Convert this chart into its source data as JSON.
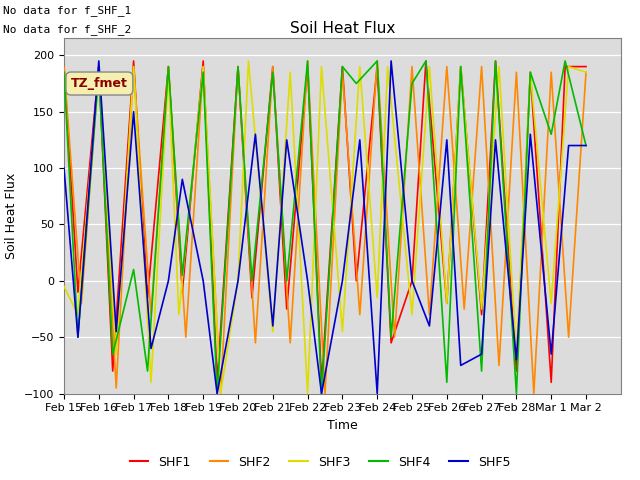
{
  "title": "Soil Heat Flux",
  "ylabel": "Soil Heat Flux",
  "xlabel": "Time",
  "text_topleft_line1": "No data for f_SHF_1",
  "text_topleft_line2": "No data for f_SHF_2",
  "annotation_box": "TZ_fmet",
  "ylim": [
    -100,
    215
  ],
  "xlim": [
    0,
    16
  ],
  "background_color": "#dcdcdc",
  "fig_color": "#ffffff",
  "series_colors": {
    "SHF1": "#ff0000",
    "SHF2": "#ff8800",
    "SHF3": "#dddd00",
    "SHF4": "#00bb00",
    "SHF5": "#0000cc"
  },
  "series_linewidth": 1.2,
  "xtick_labels": [
    "Feb 15",
    "Feb 16",
    "Feb 17",
    "Feb 18",
    "Feb 19",
    "Feb 20",
    "Feb 21",
    "Feb 22",
    "Feb 23",
    "Feb 24",
    "Feb 25",
    "Feb 26",
    "Feb 27",
    "Feb 28",
    "Mar 1",
    "Mar 2"
  ],
  "ytick_vals": [
    -100,
    -50,
    0,
    50,
    100,
    150,
    200
  ],
  "shf1_x": [
    0,
    0.4,
    1,
    1.4,
    2,
    2.4,
    3,
    3.4,
    4,
    4.4,
    5,
    5.4,
    6,
    6.4,
    7,
    7.4,
    8,
    8.4,
    9,
    9.4,
    10,
    10.4,
    11,
    11.4,
    12,
    12.4,
    13,
    13.4,
    14,
    14.4,
    15
  ],
  "shf1": [
    190,
    -10,
    190,
    -80,
    195,
    -15,
    190,
    -10,
    195,
    -90,
    190,
    -15,
    190,
    -25,
    190,
    -90,
    190,
    0,
    190,
    -55,
    0,
    195,
    -20,
    190,
    -30,
    195,
    -80,
    185,
    -90,
    190,
    190
  ],
  "shf2_x": [
    0,
    0.5,
    1,
    1.5,
    2,
    2.5,
    3,
    3.5,
    4,
    4.5,
    5,
    5.5,
    6,
    6.5,
    7,
    7.5,
    8,
    8.5,
    9,
    9.5,
    10,
    10.5,
    11,
    11.5,
    12,
    12.5,
    13,
    13.5,
    14,
    14.5,
    15
  ],
  "shf2": [
    190,
    -20,
    190,
    -95,
    190,
    -30,
    190,
    -50,
    190,
    -100,
    190,
    -55,
    190,
    -55,
    195,
    -100,
    185,
    -30,
    195,
    -50,
    190,
    -30,
    190,
    -25,
    190,
    -75,
    185,
    -100,
    185,
    -50,
    185
  ],
  "shf3_x": [
    0,
    0.4,
    1,
    1.5,
    2,
    2.5,
    3,
    3.3,
    4,
    4.5,
    5,
    5.3,
    6,
    6.5,
    7,
    7.4,
    8,
    8.5,
    9,
    9.3,
    10,
    10.5,
    11,
    11.4,
    12,
    12.5,
    13,
    13.4,
    14,
    14.5,
    15
  ],
  "shf3": [
    -5,
    -30,
    185,
    -65,
    190,
    -90,
    185,
    -30,
    190,
    -100,
    0,
    195,
    -45,
    185,
    -100,
    190,
    -45,
    190,
    -15,
    190,
    -30,
    190,
    -20,
    190,
    -25,
    190,
    -65,
    185,
    -20,
    190,
    185
  ],
  "shf4_x": [
    0,
    0.4,
    1,
    1.4,
    2,
    2.4,
    3,
    3.4,
    4,
    4.4,
    5,
    5.4,
    6,
    6.4,
    7,
    7.4,
    8,
    8.4,
    9,
    9.4,
    10,
    10.4,
    11,
    11.4,
    12,
    12.4,
    13,
    13.4,
    14,
    14.4,
    15
  ],
  "shf4": [
    185,
    -50,
    185,
    -65,
    10,
    -80,
    190,
    5,
    185,
    -100,
    190,
    0,
    185,
    0,
    195,
    -100,
    190,
    175,
    195,
    -50,
    175,
    195,
    -90,
    190,
    -80,
    195,
    -100,
    185,
    130,
    195,
    120
  ],
  "shf5_x": [
    0,
    0.4,
    1,
    1.5,
    2,
    2.5,
    3,
    3.4,
    4,
    4.4,
    5,
    5.5,
    6,
    6.4,
    7,
    7.4,
    8,
    8.5,
    9,
    9.4,
    10,
    10.5,
    11,
    11.4,
    12,
    12.4,
    13,
    13.4,
    14,
    14.5,
    15
  ],
  "shf5": [
    100,
    -50,
    195,
    -45,
    150,
    -60,
    0,
    90,
    0,
    -100,
    0,
    130,
    -40,
    125,
    0,
    -100,
    0,
    125,
    -100,
    195,
    0,
    -40,
    125,
    -75,
    -65,
    125,
    -70,
    130,
    -65,
    120,
    120
  ]
}
